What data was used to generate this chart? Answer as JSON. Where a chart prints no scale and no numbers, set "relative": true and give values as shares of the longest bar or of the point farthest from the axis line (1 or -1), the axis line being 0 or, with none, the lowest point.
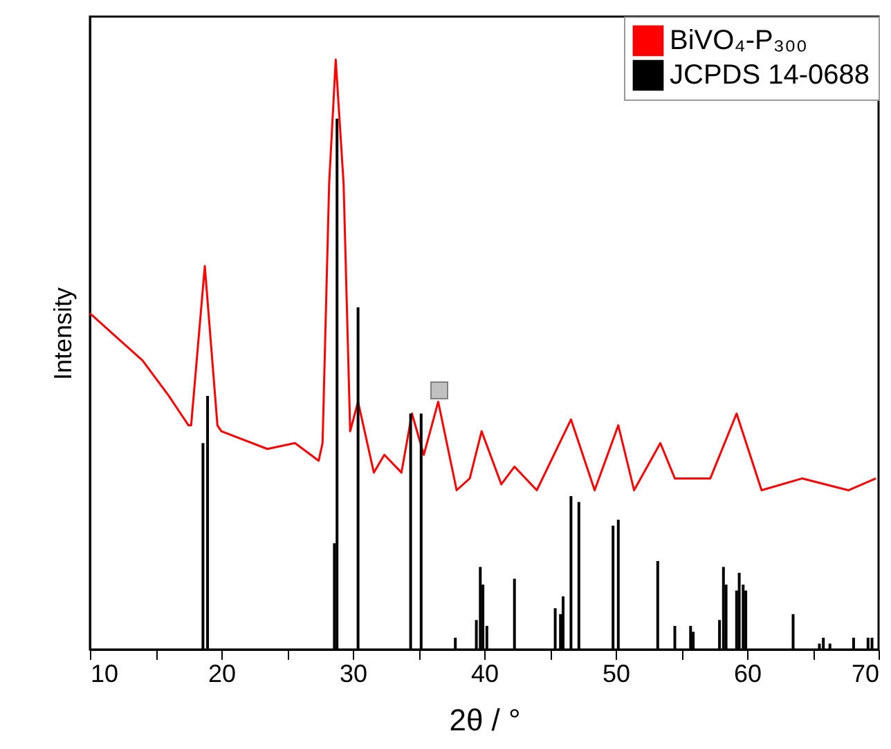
{
  "chart_data": {
    "type": "line",
    "relative": true,
    "xlabel": "2θ / °",
    "ylabel": "Intensity",
    "xlim": [
      10,
      70
    ],
    "xticks": [
      10,
      {
        "value": 15,
        "label": null
      },
      20,
      {
        "value": 25,
        "label": null
      },
      30,
      {
        "value": 35,
        "label": null
      },
      40,
      {
        "value": 45,
        "label": null
      },
      50,
      {
        "value": 55,
        "label": null
      },
      60,
      {
        "value": 65,
        "label": null
      },
      70
    ],
    "legend": "top right",
    "series": [
      {
        "name": "BiVO₄-P₃₀₀",
        "color": "#ff0000",
        "x": [
          10,
          12,
          14,
          16,
          17.5,
          17.7,
          18.74,
          19.7,
          20,
          23.5,
          25.6,
          27.4,
          27.7,
          28.2,
          28.7,
          29.3,
          29.8,
          30.4,
          31.6,
          32.4,
          33.7,
          34.5,
          35.4,
          36.5,
          37.9,
          38.9,
          39.8,
          41.3,
          42.3,
          44,
          46.6,
          48.4,
          50.2,
          51.4,
          53.4,
          54.5,
          57.2,
          59.2,
          61.1,
          64.2,
          67.7,
          69.8
        ],
        "values": [
          0.57,
          0.53,
          0.49,
          0.43,
          0.38,
          0.38,
          0.65,
          0.38,
          0.37,
          0.34,
          0.35,
          0.32,
          0.35,
          0.79,
          1,
          0.79,
          0.37,
          0.42,
          0.3,
          0.33,
          0.3,
          0.4,
          0.33,
          0.42,
          0.27,
          0.29,
          0.37,
          0.28,
          0.31,
          0.27,
          0.39,
          0.27,
          0.38,
          0.27,
          0.35,
          0.29,
          0.29,
          0.4,
          0.27,
          0.29,
          0.27,
          0.29
        ]
      },
      {
        "name": "JCPDS 14-0688",
        "type": "bar",
        "color": "#000000",
        "x": [
          18.6,
          18.95,
          28.6,
          28.8,
          30.4,
          34.4,
          35.2,
          37.8,
          39.4,
          39.7,
          39.9,
          40.2,
          42.3,
          45.4,
          45.8,
          46,
          46.6,
          47.2,
          49.8,
          50.2,
          53.2,
          54.5,
          55.7,
          55.9,
          57.9,
          58.2,
          58.4,
          59.2,
          59.4,
          59.7,
          59.9,
          63.5,
          65.5,
          65.8,
          66.3,
          68.1,
          69.2,
          69.5
        ],
        "values": [
          0.35,
          0.43,
          0.18,
          0.9,
          0.58,
          0.4,
          0.4,
          0.02,
          0.05,
          0.14,
          0.11,
          0.04,
          0.12,
          0.07,
          0.06,
          0.09,
          0.26,
          0.25,
          0.21,
          0.22,
          0.15,
          0.04,
          0.04,
          0.03,
          0.05,
          0.14,
          0.11,
          0.1,
          0.13,
          0.11,
          0.1,
          0.06,
          0.01,
          0.02,
          0.01,
          0.02,
          0.02,
          0.02
        ]
      }
    ]
  }
}
